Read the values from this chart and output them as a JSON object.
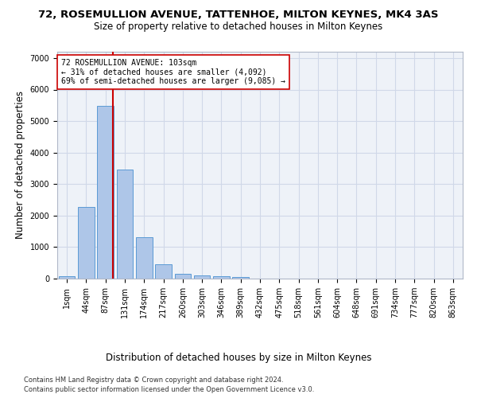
{
  "title": "72, ROSEMULLION AVENUE, TATTENHOE, MILTON KEYNES, MK4 3AS",
  "subtitle": "Size of property relative to detached houses in Milton Keynes",
  "xlabel": "Distribution of detached houses by size in Milton Keynes",
  "ylabel": "Number of detached properties",
  "footnote1": "Contains HM Land Registry data © Crown copyright and database right 2024.",
  "footnote2": "Contains public sector information licensed under the Open Government Licence v3.0.",
  "bar_labels": [
    "1sqm",
    "44sqm",
    "87sqm",
    "131sqm",
    "174sqm",
    "217sqm",
    "260sqm",
    "303sqm",
    "346sqm",
    "389sqm",
    "432sqm",
    "475sqm",
    "518sqm",
    "561sqm",
    "604sqm",
    "648sqm",
    "691sqm",
    "734sqm",
    "777sqm",
    "820sqm",
    "863sqm"
  ],
  "bar_values": [
    75,
    2280,
    5480,
    3450,
    1310,
    460,
    155,
    95,
    65,
    45,
    0,
    0,
    0,
    0,
    0,
    0,
    0,
    0,
    0,
    0,
    0
  ],
  "bar_color": "#aec6e8",
  "bar_edge_color": "#5b9bd5",
  "grid_color": "#d0d8e8",
  "bg_color": "#eef2f8",
  "property_line_color": "#cc0000",
  "annotation_text": "72 ROSEMULLION AVENUE: 103sqm\n← 31% of detached houses are smaller (4,092)\n69% of semi-detached houses are larger (9,085) →",
  "annotation_box_color": "#ffffff",
  "annotation_box_edge": "#cc0000",
  "ylim": [
    0,
    7200
  ],
  "yticks": [
    0,
    1000,
    2000,
    3000,
    4000,
    5000,
    6000,
    7000
  ],
  "title_fontsize": 9.5,
  "subtitle_fontsize": 8.5,
  "axis_label_fontsize": 8.5,
  "tick_fontsize": 7,
  "annotation_fontsize": 7,
  "footnote_fontsize": 6
}
